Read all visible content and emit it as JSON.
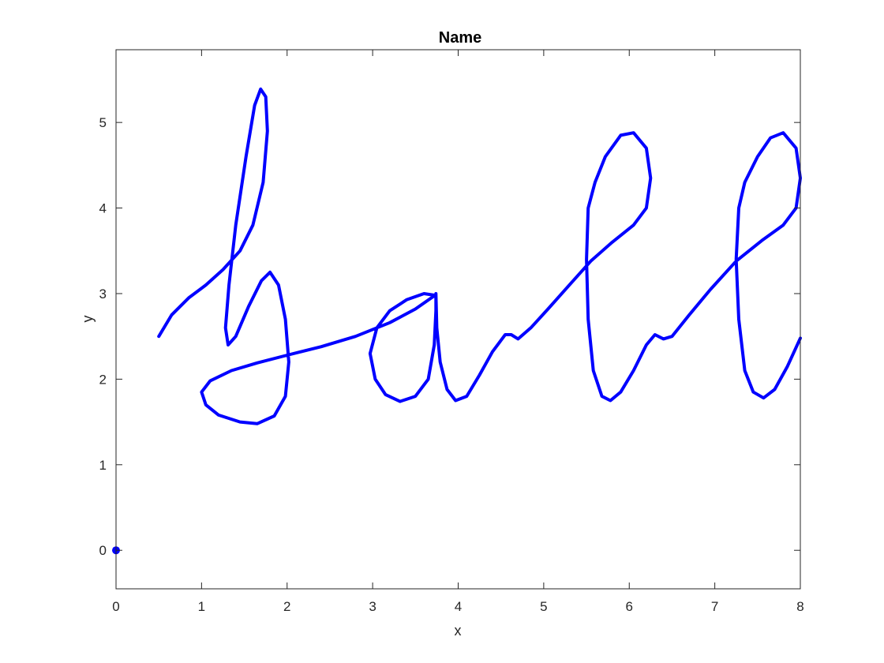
{
  "chart_data": {
    "type": "line",
    "title": "Name",
    "xlabel": "x",
    "ylabel": "y",
    "xlim": [
      0,
      8
    ],
    "ylim": [
      -0.45,
      5.85
    ],
    "xticks": [
      "0",
      "1",
      "2",
      "3",
      "4",
      "5",
      "6",
      "7",
      "8"
    ],
    "yticks": [
      "0",
      "1",
      "2",
      "3",
      "4",
      "5"
    ],
    "grid": false,
    "box": true,
    "colors": {
      "line": "#0000ff",
      "axes": "#262626",
      "background": "#ffffff"
    },
    "series": [
      {
        "kind": "line",
        "points": [
          [
            0.5,
            2.5
          ],
          [
            0.65,
            2.75
          ],
          [
            0.85,
            2.95
          ],
          [
            1.05,
            3.1
          ],
          [
            1.25,
            3.28
          ],
          [
            1.45,
            3.5
          ],
          [
            1.6,
            3.8
          ],
          [
            1.72,
            4.3
          ],
          [
            1.77,
            4.9
          ],
          [
            1.75,
            5.3
          ],
          [
            1.69,
            5.39
          ],
          [
            1.62,
            5.2
          ],
          [
            1.52,
            4.6
          ],
          [
            1.4,
            3.8
          ],
          [
            1.32,
            3.1
          ],
          [
            1.28,
            2.6
          ],
          [
            1.31,
            2.4
          ],
          [
            1.4,
            2.5
          ],
          [
            1.55,
            2.85
          ],
          [
            1.7,
            3.15
          ],
          [
            1.8,
            3.25
          ],
          [
            1.9,
            3.1
          ],
          [
            1.98,
            2.7
          ],
          [
            2.02,
            2.2
          ],
          [
            1.98,
            1.8
          ],
          [
            1.85,
            1.57
          ],
          [
            1.65,
            1.48
          ],
          [
            1.45,
            1.5
          ],
          [
            1.2,
            1.58
          ],
          [
            1.05,
            1.7
          ],
          [
            1.0,
            1.85
          ],
          [
            1.1,
            1.98
          ],
          [
            1.35,
            2.1
          ],
          [
            1.65,
            2.19
          ],
          [
            2.0,
            2.28
          ],
          [
            2.4,
            2.38
          ],
          [
            2.8,
            2.5
          ],
          [
            3.2,
            2.66
          ],
          [
            3.5,
            2.82
          ],
          [
            3.73,
            2.98
          ],
          [
            3.6,
            3.0
          ],
          [
            3.4,
            2.93
          ],
          [
            3.2,
            2.8
          ],
          [
            3.05,
            2.6
          ],
          [
            2.97,
            2.3
          ],
          [
            3.03,
            2.0
          ],
          [
            3.15,
            1.82
          ],
          [
            3.32,
            1.74
          ],
          [
            3.5,
            1.8
          ],
          [
            3.65,
            2.0
          ],
          [
            3.72,
            2.4
          ],
          [
            3.74,
            2.8
          ],
          [
            3.74,
            3.0
          ],
          [
            3.75,
            2.6
          ],
          [
            3.79,
            2.2
          ],
          [
            3.87,
            1.88
          ],
          [
            3.97,
            1.75
          ],
          [
            4.1,
            1.8
          ],
          [
            4.25,
            2.05
          ],
          [
            4.4,
            2.32
          ],
          [
            4.55,
            2.52
          ],
          [
            4.62,
            2.52
          ],
          [
            4.7,
            2.47
          ],
          [
            4.85,
            2.6
          ],
          [
            5.05,
            2.82
          ],
          [
            5.3,
            3.1
          ],
          [
            5.55,
            3.38
          ],
          [
            5.8,
            3.6
          ],
          [
            6.05,
            3.8
          ],
          [
            6.2,
            4.0
          ],
          [
            6.25,
            4.35
          ],
          [
            6.2,
            4.7
          ],
          [
            6.05,
            4.88
          ],
          [
            5.9,
            4.85
          ],
          [
            5.72,
            4.6
          ],
          [
            5.6,
            4.3
          ],
          [
            5.52,
            4.0
          ],
          [
            5.5,
            3.4
          ],
          [
            5.52,
            2.7
          ],
          [
            5.58,
            2.1
          ],
          [
            5.68,
            1.8
          ],
          [
            5.78,
            1.75
          ],
          [
            5.9,
            1.85
          ],
          [
            6.05,
            2.1
          ],
          [
            6.2,
            2.4
          ],
          [
            6.3,
            2.52
          ],
          [
            6.4,
            2.47
          ],
          [
            6.5,
            2.5
          ],
          [
            6.7,
            2.75
          ],
          [
            6.95,
            3.05
          ],
          [
            7.25,
            3.38
          ],
          [
            7.55,
            3.62
          ],
          [
            7.8,
            3.8
          ],
          [
            7.95,
            4.0
          ],
          [
            8.0,
            4.35
          ],
          [
            7.95,
            4.7
          ],
          [
            7.8,
            4.88
          ],
          [
            7.65,
            4.82
          ],
          [
            7.5,
            4.6
          ],
          [
            7.35,
            4.3
          ],
          [
            7.28,
            4.0
          ],
          [
            7.25,
            3.4
          ],
          [
            7.28,
            2.7
          ],
          [
            7.35,
            2.1
          ],
          [
            7.45,
            1.85
          ],
          [
            7.57,
            1.78
          ],
          [
            7.7,
            1.88
          ],
          [
            7.85,
            2.15
          ],
          [
            8.0,
            2.48
          ]
        ]
      },
      {
        "kind": "marker",
        "points": [
          [
            0,
            0
          ]
        ]
      }
    ]
  }
}
